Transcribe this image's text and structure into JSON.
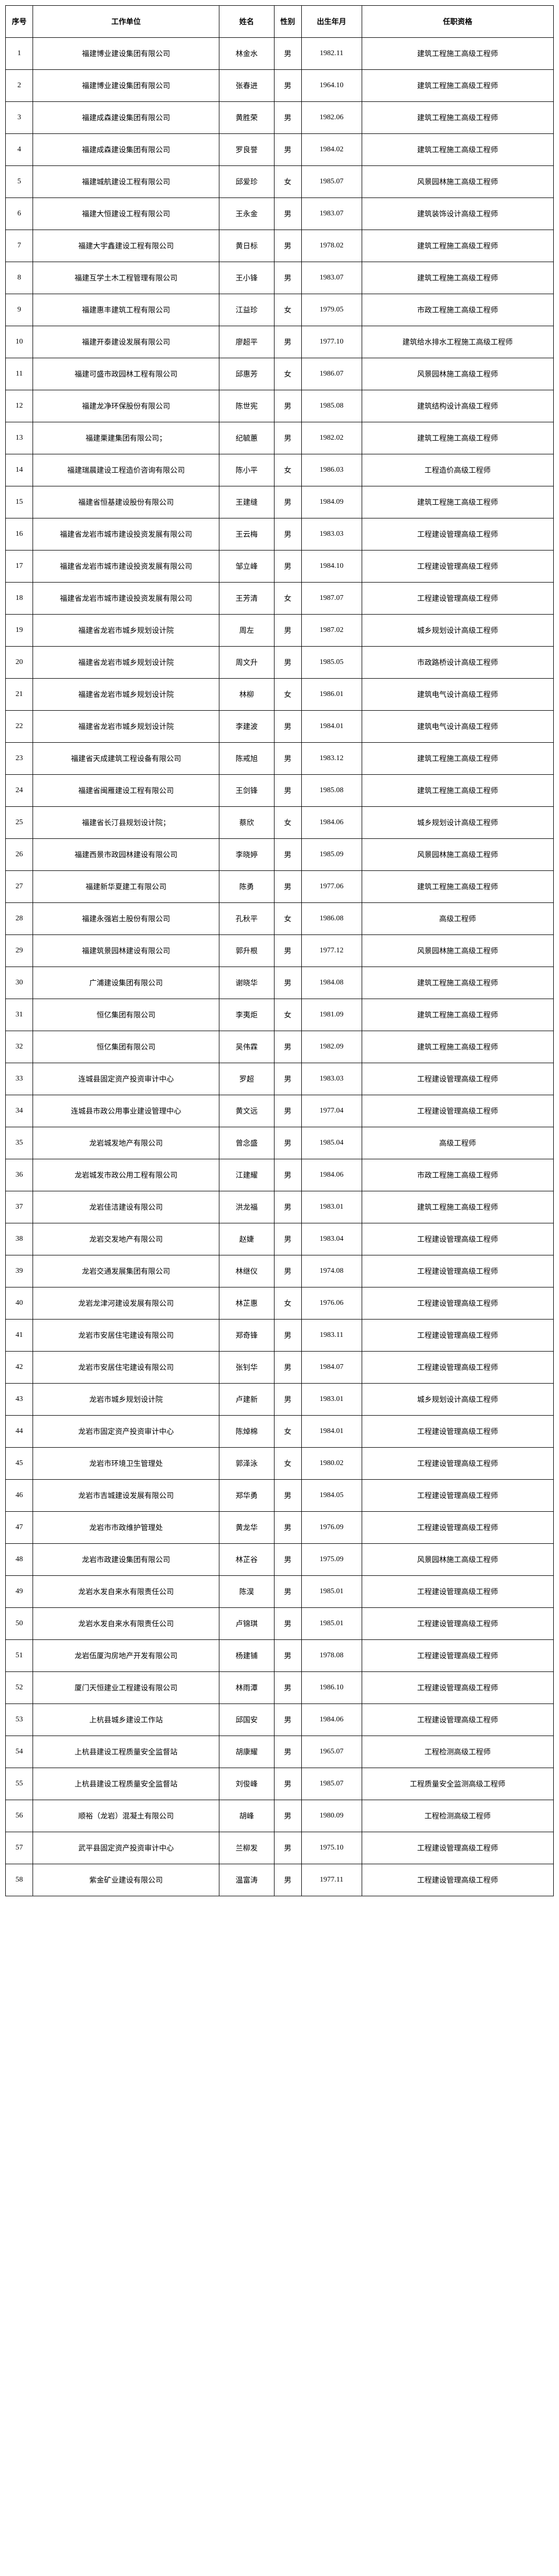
{
  "headers": {
    "seq": "序号",
    "unit": "工作单位",
    "name": "姓名",
    "gender": "性别",
    "birth": "出生年月",
    "qual": "任职资格"
  },
  "rows": [
    {
      "seq": "1",
      "unit": "福建博业建设集团有限公司",
      "name": "林金水",
      "gender": "男",
      "birth": "1982.11",
      "qual": "建筑工程施工高级工程师"
    },
    {
      "seq": "2",
      "unit": "福建博业建设集团有限公司",
      "name": "张春进",
      "gender": "男",
      "birth": "1964.10",
      "qual": "建筑工程施工高级工程师"
    },
    {
      "seq": "3",
      "unit": "福建成森建设集团有限公司",
      "name": "黄胜荣",
      "gender": "男",
      "birth": "1982.06",
      "qual": "建筑工程施工高级工程师"
    },
    {
      "seq": "4",
      "unit": "福建成森建设集团有限公司",
      "name": "罗良誉",
      "gender": "男",
      "birth": "1984.02",
      "qual": "建筑工程施工高级工程师"
    },
    {
      "seq": "5",
      "unit": "福建城航建设工程有限公司",
      "name": "邱爱珍",
      "gender": "女",
      "birth": "1985.07",
      "qual": "风景园林施工高级工程师"
    },
    {
      "seq": "6",
      "unit": "福建大恒建设工程有限公司",
      "name": "王永金",
      "gender": "男",
      "birth": "1983.07",
      "qual": "建筑装饰设计高级工程师"
    },
    {
      "seq": "7",
      "unit": "福建大宇鑫建设工程有限公司",
      "name": "黄日标",
      "gender": "男",
      "birth": "1978.02",
      "qual": "建筑工程施工高级工程师"
    },
    {
      "seq": "8",
      "unit": "福建互学土木工程管理有限公司",
      "name": "王小锋",
      "gender": "男",
      "birth": "1983.07",
      "qual": "建筑工程施工高级工程师"
    },
    {
      "seq": "9",
      "unit": "福建惠丰建筑工程有限公司",
      "name": "江益珍",
      "gender": "女",
      "birth": "1979.05",
      "qual": "市政工程施工高级工程师"
    },
    {
      "seq": "10",
      "unit": "福建开泰建设发展有限公司",
      "name": "廖超平",
      "gender": "男",
      "birth": "1977.10",
      "qual": "建筑给水排水工程施工高级工程师"
    },
    {
      "seq": "11",
      "unit": "福建可盛市政园林工程有限公司",
      "name": "邱惠芳",
      "gender": "女",
      "birth": "1986.07",
      "qual": "风景园林施工高级工程师"
    },
    {
      "seq": "12",
      "unit": "福建龙净环保股份有限公司",
      "name": "陈世宪",
      "gender": "男",
      "birth": "1985.08",
      "qual": "建筑结构设计高级工程师"
    },
    {
      "seq": "13",
      "unit": "福建栗建集团有限公司；",
      "name": "纪毓蕙",
      "gender": "男",
      "birth": "1982.02",
      "qual": "建筑工程施工高级工程师"
    },
    {
      "seq": "14",
      "unit": "福建瑞晨建设工程造价咨询有限公司",
      "name": "陈小平",
      "gender": "女",
      "birth": "1986.03",
      "qual": "工程造价高级工程师"
    },
    {
      "seq": "15",
      "unit": "福建省恒基建设股份有限公司",
      "name": "王建缝",
      "gender": "男",
      "birth": "1984.09",
      "qual": "建筑工程施工高级工程师"
    },
    {
      "seq": "16",
      "unit": "福建省龙岩市城市建设投资发展有限公司",
      "name": "王云梅",
      "gender": "男",
      "birth": "1983.03",
      "qual": "工程建设管理高级工程师"
    },
    {
      "seq": "17",
      "unit": "福建省龙岩市城市建设投资发展有限公司",
      "name": "邹立峰",
      "gender": "男",
      "birth": "1984.10",
      "qual": "工程建设管理高级工程师"
    },
    {
      "seq": "18",
      "unit": "福建省龙岩市城市建设投资发展有限公司",
      "name": "王芳清",
      "gender": "女",
      "birth": "1987.07",
      "qual": "工程建设管理高级工程师"
    },
    {
      "seq": "19",
      "unit": "福建省龙岩市城乡规划设计院",
      "name": "周左",
      "gender": "男",
      "birth": "1987.02",
      "qual": "城乡规划设计高级工程师"
    },
    {
      "seq": "20",
      "unit": "福建省龙岩市城乡规划设计院",
      "name": "周文升",
      "gender": "男",
      "birth": "1985.05",
      "qual": "市政路桥设计高级工程师"
    },
    {
      "seq": "21",
      "unit": "福建省龙岩市城乡规划设计院",
      "name": "林柳",
      "gender": "女",
      "birth": "1986.01",
      "qual": "建筑电气设计高级工程师"
    },
    {
      "seq": "22",
      "unit": "福建省龙岩市城乡规划设计院",
      "name": "李建波",
      "gender": "男",
      "birth": "1984.01",
      "qual": "建筑电气设计高级工程师"
    },
    {
      "seq": "23",
      "unit": "福建省天成建筑工程设备有限公司",
      "name": "陈戒旭",
      "gender": "男",
      "birth": "1983.12",
      "qual": "建筑工程施工高级工程师"
    },
    {
      "seq": "24",
      "unit": "福建省闽雁建设工程有限公司",
      "name": "王剑锋",
      "gender": "男",
      "birth": "1985.08",
      "qual": "建筑工程施工高级工程师"
    },
    {
      "seq": "25",
      "unit": "福建省长汀县规划设计院；",
      "name": "蔡欣",
      "gender": "女",
      "birth": "1984.06",
      "qual": "城乡规划设计高级工程师"
    },
    {
      "seq": "26",
      "unit": "福建西景市政园林建设有限公司",
      "name": "李晓婷",
      "gender": "男",
      "birth": "1985.09",
      "qual": "风景园林施工高级工程师"
    },
    {
      "seq": "27",
      "unit": "福建新华夏建工有限公司",
      "name": "陈勇",
      "gender": "男",
      "birth": "1977.06",
      "qual": "建筑工程施工高级工程师"
    },
    {
      "seq": "28",
      "unit": "福建永强岩土股份有限公司",
      "name": "孔秋平",
      "gender": "女",
      "birth": "1986.08",
      "qual": "高级工程师"
    },
    {
      "seq": "29",
      "unit": "福建筑景园林建设有限公司",
      "name": "郭升根",
      "gender": "男",
      "birth": "1977.12",
      "qual": "风景园林施工高级工程师"
    },
    {
      "seq": "30",
      "unit": "广浦建设集团有限公司",
      "name": "谢晓华",
      "gender": "男",
      "birth": "1984.08",
      "qual": "建筑工程施工高级工程师"
    },
    {
      "seq": "31",
      "unit": "恒亿集团有限公司",
      "name": "李夷炬",
      "gender": "女",
      "birth": "1981.09",
      "qual": "建筑工程施工高级工程师"
    },
    {
      "seq": "32",
      "unit": "恒亿集团有限公司",
      "name": "吴伟霖",
      "gender": "男",
      "birth": "1982.09",
      "qual": "建筑工程施工高级工程师"
    },
    {
      "seq": "33",
      "unit": "连城县固定资产投资审计中心",
      "name": "罗超",
      "gender": "男",
      "birth": "1983.03",
      "qual": "工程建设管理高级工程师"
    },
    {
      "seq": "34",
      "unit": "连城县市政公用事业建设管理中心",
      "name": "黄文远",
      "gender": "男",
      "birth": "1977.04",
      "qual": "工程建设管理高级工程师"
    },
    {
      "seq": "35",
      "unit": "龙岩城发地产有限公司",
      "name": "曾念盛",
      "gender": "男",
      "birth": "1985.04",
      "qual": "高级工程师"
    },
    {
      "seq": "36",
      "unit": "龙岩城发市政公用工程有限公司",
      "name": "江建耀",
      "gender": "男",
      "birth": "1984.06",
      "qual": "市政工程施工高级工程师"
    },
    {
      "seq": "37",
      "unit": "龙岩佳洁建设有限公司",
      "name": "洪龙福",
      "gender": "男",
      "birth": "1983.01",
      "qual": "建筑工程施工高级工程师"
    },
    {
      "seq": "38",
      "unit": "龙岩交发地产有限公司",
      "name": "赵婕",
      "gender": "男",
      "birth": "1983.04",
      "qual": "工程建设管理高级工程师"
    },
    {
      "seq": "39",
      "unit": "龙岩交通发展集团有限公司",
      "name": "林继仪",
      "gender": "男",
      "birth": "1974.08",
      "qual": "工程建设管理高级工程师"
    },
    {
      "seq": "40",
      "unit": "龙岩龙津河建设发展有限公司",
      "name": "林芷惠",
      "gender": "女",
      "birth": "1976.06",
      "qual": "工程建设管理高级工程师"
    },
    {
      "seq": "41",
      "unit": "龙岩市安居住宅建设有限公司",
      "name": "郑奇锋",
      "gender": "男",
      "birth": "1983.11",
      "qual": "工程建设管理高级工程师"
    },
    {
      "seq": "42",
      "unit": "龙岩市安居住宅建设有限公司",
      "name": "张钊华",
      "gender": "男",
      "birth": "1984.07",
      "qual": "工程建设管理高级工程师"
    },
    {
      "seq": "43",
      "unit": "龙岩市城乡规划设计院",
      "name": "卢建新",
      "gender": "男",
      "birth": "1983.01",
      "qual": "城乡规划设计高级工程师"
    },
    {
      "seq": "44",
      "unit": "龙岩市固定资产投资审计中心",
      "name": "陈焯棉",
      "gender": "女",
      "birth": "1984.01",
      "qual": "工程建设管理高级工程师"
    },
    {
      "seq": "45",
      "unit": "龙岩市环境卫生管理处",
      "name": "郭泽泳",
      "gender": "女",
      "birth": "1980.02",
      "qual": "工程建设管理高级工程师"
    },
    {
      "seq": "46",
      "unit": "龙岩市吉城建设发展有限公司",
      "name": "郑华勇",
      "gender": "男",
      "birth": "1984.05",
      "qual": "工程建设管理高级工程师"
    },
    {
      "seq": "47",
      "unit": "龙岩市市政维护管理处",
      "name": "黄龙华",
      "gender": "男",
      "birth": "1976.09",
      "qual": "工程建设管理高级工程师"
    },
    {
      "seq": "48",
      "unit": "龙岩市政建设集团有限公司",
      "name": "林芷谷",
      "gender": "男",
      "birth": "1975.09",
      "qual": "风景园林施工高级工程师"
    },
    {
      "seq": "49",
      "unit": "龙岩水发自来水有限责任公司",
      "name": "陈淏",
      "gender": "男",
      "birth": "1985.01",
      "qual": "工程建设管理高级工程师"
    },
    {
      "seq": "50",
      "unit": "龙岩水发自来水有限责任公司",
      "name": "卢锦琪",
      "gender": "男",
      "birth": "1985.01",
      "qual": "工程建设管理高级工程师"
    },
    {
      "seq": "51",
      "unit": "龙岩伍厦沟房地产开发有限公司",
      "name": "杨建铺",
      "gender": "男",
      "birth": "1978.08",
      "qual": "工程建设管理高级工程师"
    },
    {
      "seq": "52",
      "unit": "厦门天恒建业工程建设有限公司",
      "name": "林雨潭",
      "gender": "男",
      "birth": "1986.10",
      "qual": "工程建设管理高级工程师"
    },
    {
      "seq": "53",
      "unit": "上杭县城乡建设工作站",
      "name": "邱国安",
      "gender": "男",
      "birth": "1984.06",
      "qual": "工程建设管理高级工程师"
    },
    {
      "seq": "54",
      "unit": "上杭县建设工程质量安全监督站",
      "name": "胡康耀",
      "gender": "男",
      "birth": "1965.07",
      "qual": "工程检测高级工程师"
    },
    {
      "seq": "55",
      "unit": "上杭县建设工程质量安全监督站",
      "name": "刘俊峰",
      "gender": "男",
      "birth": "1985.07",
      "qual": "工程质量安全监测高级工程师"
    },
    {
      "seq": "56",
      "unit": "顺裕（龙岩）混凝土有限公司",
      "name": "胡峰",
      "gender": "男",
      "birth": "1980.09",
      "qual": "工程检测高级工程师"
    },
    {
      "seq": "57",
      "unit": "武平县固定资产投资审计中心",
      "name": "兰柳发",
      "gender": "男",
      "birth": "1975.10",
      "qual": "工程建设管理高级工程师"
    },
    {
      "seq": "58",
      "unit": "紫金矿业建设有限公司",
      "name": "温富涛",
      "gender": "男",
      "birth": "1977.11",
      "qual": "工程建设管理高级工程师"
    }
  ]
}
